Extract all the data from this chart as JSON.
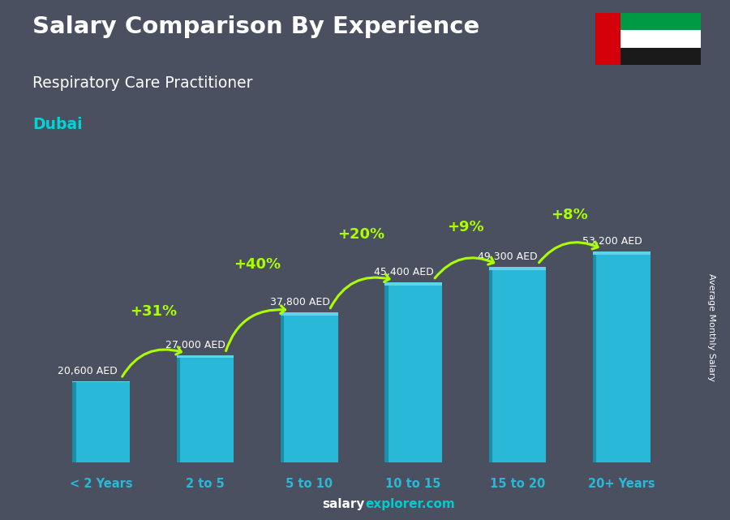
{
  "title": "Salary Comparison By Experience",
  "subtitle": "Respiratory Care Practitioner",
  "city": "Dubai",
  "ylabel": "Average Monthly Salary",
  "categories": [
    "< 2 Years",
    "2 to 5",
    "5 to 10",
    "10 to 15",
    "15 to 20",
    "20+ Years"
  ],
  "values": [
    20600,
    27000,
    37800,
    45400,
    49300,
    53200
  ],
  "value_labels": [
    "20,600 AED",
    "27,000 AED",
    "37,800 AED",
    "45,400 AED",
    "49,300 AED",
    "53,200 AED"
  ],
  "pct_labels": [
    "+31%",
    "+40%",
    "+20%",
    "+9%",
    "+8%"
  ],
  "bar_color_main": "#29b8d8",
  "bar_color_left": "#1a8fa8",
  "bar_color_right": "#1da8c5",
  "bar_color_top": "#5dd4ea",
  "pct_color": "#aaff00",
  "title_color": "#ffffff",
  "subtitle_color": "#ffffff",
  "city_color": "#00d4d4",
  "watermark_color1": "#ffffff",
  "watermark_color2": "#00cccc",
  "tick_label_color": "#29b8d8",
  "value_label_color": "#ffffff",
  "ylabel_color": "#ffffff",
  "bg_color": "#4a5060",
  "watermark_salary": "salary",
  "watermark_rest": "explorer.com"
}
